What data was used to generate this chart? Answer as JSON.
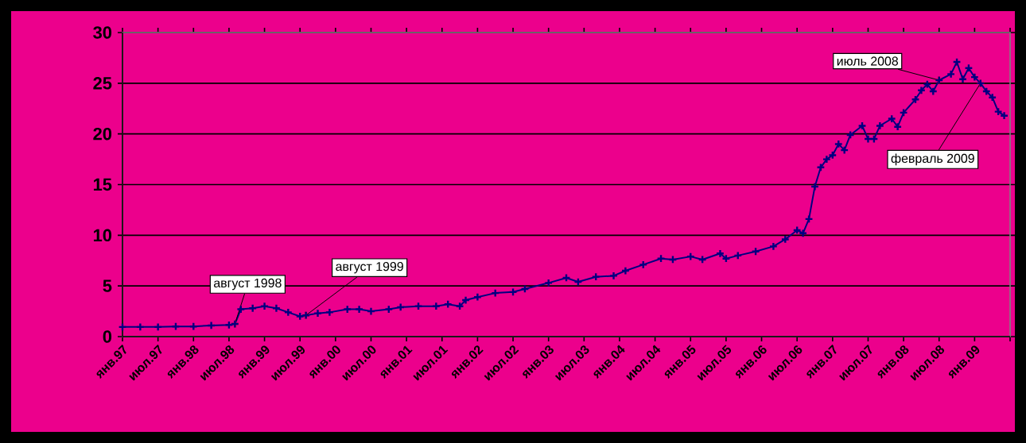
{
  "chart_data": {
    "type": "line",
    "x": [
      "1997-01",
      "1997-04",
      "1997-07",
      "1997-10",
      "1998-01",
      "1998-04",
      "1998-07",
      "1998-08",
      "1998-09",
      "1998-11",
      "1999-01",
      "1999-03",
      "1999-05",
      "1999-07",
      "1999-08",
      "1999-10",
      "1999-12",
      "2000-03",
      "2000-05",
      "2000-07",
      "2000-10",
      "2000-12",
      "2001-03",
      "2001-06",
      "2001-08",
      "2001-10",
      "2001-11",
      "2002-01",
      "2002-04",
      "2002-07",
      "2002-09",
      "2003-01",
      "2003-04",
      "2003-06",
      "2003-09",
      "2003-12",
      "2004-02",
      "2004-05",
      "2004-08",
      "2004-10",
      "2005-01",
      "2005-03",
      "2005-06",
      "2005-07",
      "2005-09",
      "2005-12",
      "2006-03",
      "2006-05",
      "2006-07",
      "2006-08",
      "2006-09",
      "2006-10",
      "2006-11",
      "2006-12",
      "2007-01",
      "2007-02",
      "2007-03",
      "2007-04",
      "2007-06",
      "2007-07",
      "2007-08",
      "2007-09",
      "2007-11",
      "2007-12",
      "2008-01",
      "2008-03",
      "2008-04",
      "2008-05",
      "2008-06",
      "2008-07",
      "2008-09",
      "2008-10",
      "2008-11",
      "2008-12",
      "2009-01",
      "2009-02",
      "2009-03",
      "2009-04",
      "2009-05",
      "2009-06"
    ],
    "series": [
      {
        "color": "#000080",
        "values": [
          0.95,
          0.95,
          0.95,
          1.0,
          1.0,
          1.1,
          1.15,
          1.25,
          2.7,
          2.8,
          3.0,
          2.8,
          2.4,
          2.0,
          2.1,
          2.3,
          2.4,
          2.7,
          2.7,
          2.5,
          2.7,
          2.9,
          3.0,
          3.0,
          3.2,
          3.0,
          3.6,
          3.9,
          4.3,
          4.4,
          4.7,
          5.3,
          5.8,
          5.4,
          5.9,
          6.0,
          6.5,
          7.1,
          7.7,
          7.6,
          7.9,
          7.6,
          8.2,
          7.7,
          8.0,
          8.4,
          8.9,
          9.6,
          10.5,
          10.2,
          11.6,
          14.8,
          16.7,
          17.5,
          17.9,
          19.0,
          18.4,
          19.9,
          20.8,
          19.5,
          19.5,
          20.8,
          21.5,
          20.7,
          22.1,
          23.4,
          24.3,
          24.9,
          24.2,
          25.3,
          25.9,
          27.1,
          25.4,
          26.5,
          25.6,
          25.0,
          24.2,
          23.6,
          22.2,
          21.8
        ]
      }
    ],
    "xlim": [
      "1997-01",
      "2009-07"
    ],
    "xticks": [
      {
        "value": "1997-01",
        "label": "янв.97"
      },
      {
        "value": "1997-07",
        "label": "июл.97"
      },
      {
        "value": "1998-01",
        "label": "янв.98"
      },
      {
        "value": "1998-07",
        "label": "июл.98"
      },
      {
        "value": "1999-01",
        "label": "янв.99"
      },
      {
        "value": "1999-07",
        "label": "июл.99"
      },
      {
        "value": "2000-01",
        "label": "янв.00"
      },
      {
        "value": "2000-07",
        "label": "июл.00"
      },
      {
        "value": "2001-01",
        "label": "янв.01"
      },
      {
        "value": "2001-07",
        "label": "июл.01"
      },
      {
        "value": "2002-01",
        "label": "янв.02"
      },
      {
        "value": "2002-07",
        "label": "июл.02"
      },
      {
        "value": "2003-01",
        "label": "янв.03"
      },
      {
        "value": "2003-07",
        "label": "июл.03"
      },
      {
        "value": "2004-01",
        "label": "янв.04"
      },
      {
        "value": "2004-07",
        "label": "июл.04"
      },
      {
        "value": "2005-01",
        "label": "янв.05"
      },
      {
        "value": "2005-07",
        "label": "июл.05"
      },
      {
        "value": "2006-01",
        "label": "янв.06"
      },
      {
        "value": "2006-07",
        "label": "июл.06"
      },
      {
        "value": "2007-01",
        "label": "янв.07"
      },
      {
        "value": "2007-07",
        "label": "июл.07"
      },
      {
        "value": "2008-01",
        "label": "янв.08"
      },
      {
        "value": "2008-07",
        "label": "июл.08"
      },
      {
        "value": "2009-01",
        "label": "янв.09"
      },
      {
        "value": "2009-07",
        "label": null
      }
    ],
    "ylim": [
      0,
      30
    ],
    "yticks": [
      0,
      5,
      10,
      15,
      20,
      25,
      30
    ],
    "grid": "y",
    "marker": "cross",
    "line_style": "solid",
    "annotations": [
      {
        "text": "август 1998",
        "x": "1998-08",
        "y": 1.25
      },
      {
        "text": "август 1999",
        "x": "1999-08",
        "y": 2.1
      },
      {
        "text": "июль 2008",
        "x": "2008-07",
        "y": 25.3
      },
      {
        "text": "февраль 2009",
        "x": "2009-02",
        "y": 25.0
      }
    ]
  }
}
